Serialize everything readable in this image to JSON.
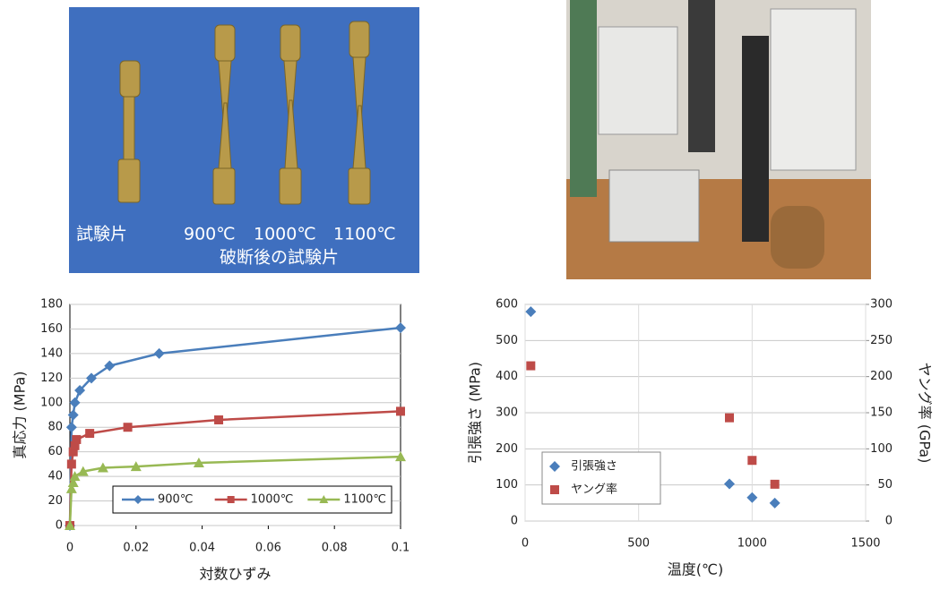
{
  "photos": {
    "labels": [
      "試験片",
      "900℃",
      "1000℃",
      "1100℃"
    ],
    "caption": "破断後の試験片"
  },
  "chart_data": [
    {
      "type": "line",
      "ylabel": "真応力 (MPa)",
      "xlabel": "対数ひずみ",
      "xlim": [
        0,
        0.1
      ],
      "xticks": [
        0,
        0.02,
        0.04,
        0.06,
        0.08,
        0.1
      ],
      "ylim": [
        0,
        180
      ],
      "yticks": [
        0,
        20,
        40,
        60,
        80,
        100,
        120,
        140,
        160,
        180
      ],
      "grid": "y",
      "legend": "bottom",
      "series": [
        {
          "name": "900℃",
          "color": "#4a7ebb",
          "marker": "diamond",
          "x": [
            0,
            0.0005,
            0.001,
            0.0015,
            0.003,
            0.0065,
            0.012,
            0.027,
            0.1
          ],
          "values": [
            0,
            80,
            90,
            100,
            110,
            120,
            130,
            140,
            161
          ]
        },
        {
          "name": "1000℃",
          "color": "#be4b48",
          "marker": "square",
          "x": [
            0,
            0.0005,
            0.001,
            0.0015,
            0.002,
            0.006,
            0.0175,
            0.045,
            0.1
          ],
          "values": [
            0,
            50,
            60,
            65,
            70,
            75,
            80,
            86,
            93
          ]
        },
        {
          "name": "1100℃",
          "color": "#98b954",
          "marker": "triangle",
          "x": [
            0,
            0.0005,
            0.001,
            0.0015,
            0.004,
            0.01,
            0.02,
            0.039,
            0.1
          ],
          "values": [
            0,
            30,
            35,
            40,
            44,
            47,
            48,
            51,
            56
          ]
        }
      ]
    },
    {
      "type": "scatter",
      "ylabel": "引張強さ (MPa)",
      "y2label": "ヤング率 (GPa)",
      "xlabel": "温度(℃)",
      "xlim": [
        0,
        1500
      ],
      "xticks": [
        0,
        500,
        1000,
        1500
      ],
      "ylim": [
        0,
        600
      ],
      "yticks": [
        0,
        100,
        200,
        300,
        400,
        500,
        600
      ],
      "y2lim": [
        0,
        300
      ],
      "y2ticks": [
        0,
        50,
        100,
        150,
        200,
        250,
        300
      ],
      "grid": "both",
      "legend": "lower left",
      "series": [
        {
          "name": "引張強さ",
          "color": "#4a7ebb",
          "marker": "diamond",
          "x": [
            25,
            900,
            1000,
            1100
          ],
          "values": [
            580,
            103,
            65,
            50
          ]
        },
        {
          "name": "ヤング率",
          "color": "#be4b48",
          "marker": "square",
          "axis": "y2",
          "x": [
            25,
            900,
            1000,
            1100
          ],
          "values": [
            215,
            143,
            84,
            51
          ]
        }
      ]
    }
  ]
}
